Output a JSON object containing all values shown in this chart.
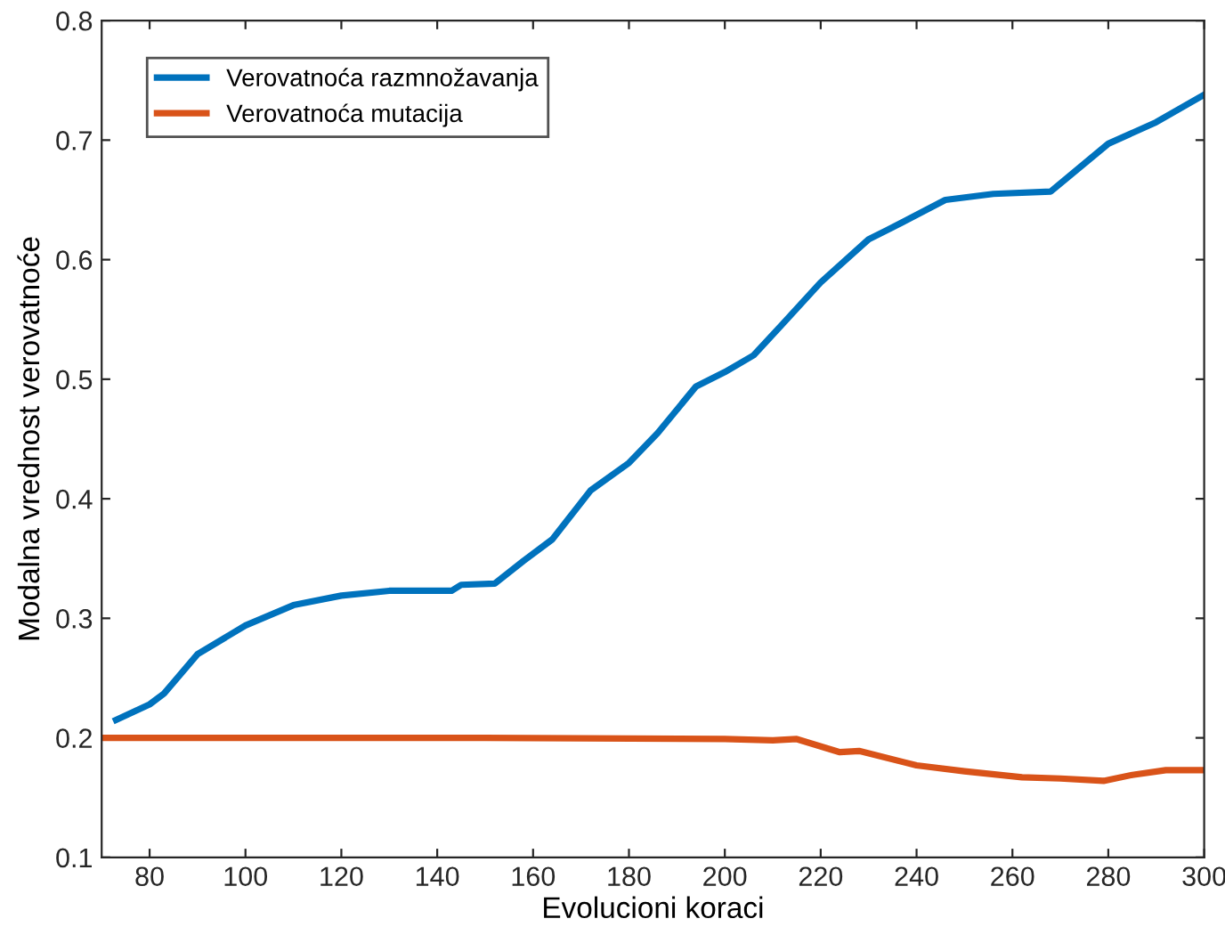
{
  "chart_data": {
    "type": "line",
    "xlabel": "Evolucioni koraci",
    "ylabel": "Modalna vrednost verovatnoće",
    "xlim": [
      70,
      300
    ],
    "ylim": [
      0.1,
      0.8
    ],
    "xticks": [
      80,
      100,
      120,
      140,
      160,
      180,
      200,
      220,
      240,
      260,
      280,
      300
    ],
    "yticks": [
      0.1,
      0.2,
      0.3,
      0.4,
      0.5,
      0.6,
      0.7,
      0.8
    ],
    "grid": false,
    "legend": "top left",
    "marker": "none",
    "line_style": "solid",
    "series": [
      {
        "name": "Verovatnoća razmnožavanja",
        "color": "#0072bd",
        "x": [
          73,
          80,
          83,
          90,
          100,
          110,
          120,
          130,
          143,
          145,
          152,
          158,
          164,
          172,
          180,
          186,
          194,
          200,
          206,
          212,
          220,
          230,
          235,
          246,
          256,
          268,
          280,
          290,
          300
        ],
        "values": [
          0.215,
          0.228,
          0.237,
          0.27,
          0.294,
          0.311,
          0.319,
          0.323,
          0.323,
          0.328,
          0.329,
          0.348,
          0.366,
          0.407,
          0.43,
          0.455,
          0.494,
          0.506,
          0.52,
          0.546,
          0.581,
          0.617,
          0.627,
          0.65,
          0.655,
          0.657,
          0.697,
          0.715,
          0.738
        ]
      },
      {
        "name": "Verovatnoća mutacija",
        "color": "#d95319",
        "x": [
          70,
          100,
          150,
          200,
          210,
          215,
          224,
          228,
          240,
          250,
          262,
          270,
          279,
          285,
          292,
          300
        ],
        "values": [
          0.2,
          0.2,
          0.2,
          0.199,
          0.198,
          0.199,
          0.188,
          0.189,
          0.177,
          0.172,
          0.167,
          0.166,
          0.164,
          0.169,
          0.173,
          0.173
        ]
      }
    ]
  }
}
